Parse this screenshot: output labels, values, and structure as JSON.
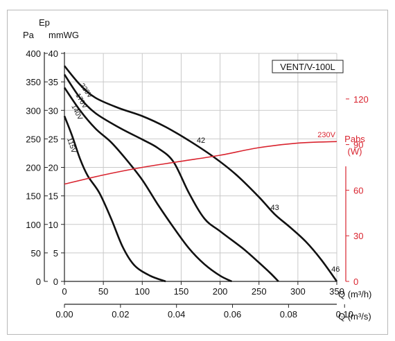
{
  "chart_data": {
    "type": "line",
    "model_label": "VENT/V-100L",
    "y_left": {
      "pa_label": "Pa",
      "ep_label": "Ep",
      "mmwg_label": "mmWG",
      "range": [
        0,
        400
      ],
      "pa_ticks": [
        0,
        50,
        100,
        150,
        200,
        250,
        300,
        350,
        400
      ],
      "mmwg_ticks": [
        0,
        5,
        10,
        15,
        20,
        25,
        30,
        35,
        40
      ]
    },
    "y_right": {
      "label_line1": "Pabs",
      "label_line2": "(W)",
      "range": [
        0,
        150
      ],
      "ticks": [
        0,
        30,
        60,
        90,
        120
      ]
    },
    "x_bottom_m3h": {
      "label": "Q (m³/h)",
      "range": [
        0,
        350
      ],
      "ticks": [
        0,
        50,
        100,
        150,
        200,
        250,
        300,
        350
      ]
    },
    "x_bottom_m3s": {
      "label": "Q (m³/s)",
      "ticks": [
        "0.00",
        "0.02",
        "0.04",
        "0.06",
        "0.08",
        "0.10"
      ]
    },
    "grid": true,
    "series": [
      {
        "name": "230V",
        "points": [
          [
            0,
            378
          ],
          [
            20,
            345
          ],
          [
            40,
            322
          ],
          [
            70,
            304
          ],
          [
            100,
            290
          ],
          [
            130,
            271
          ],
          [
            160,
            247
          ],
          [
            190,
            220
          ],
          [
            220,
            188
          ],
          [
            250,
            148
          ],
          [
            270,
            118
          ],
          [
            290,
            95
          ],
          [
            310,
            70
          ],
          [
            330,
            38
          ],
          [
            350,
            0
          ]
        ]
      },
      {
        "name": "170V",
        "points": [
          [
            0,
            363
          ],
          [
            20,
            322
          ],
          [
            40,
            295
          ],
          [
            70,
            270
          ],
          [
            100,
            249
          ],
          [
            120,
            234
          ],
          [
            140,
            210
          ],
          [
            160,
            155
          ],
          [
            180,
            110
          ],
          [
            200,
            88
          ],
          [
            230,
            57
          ],
          [
            250,
            33
          ],
          [
            265,
            14
          ],
          [
            275,
            0
          ]
        ]
      },
      {
        "name": "140V",
        "points": [
          [
            0,
            340
          ],
          [
            20,
            300
          ],
          [
            40,
            268
          ],
          [
            60,
            244
          ],
          [
            80,
            213
          ],
          [
            100,
            178
          ],
          [
            120,
            135
          ],
          [
            140,
            95
          ],
          [
            160,
            58
          ],
          [
            180,
            30
          ],
          [
            200,
            10
          ],
          [
            215,
            0
          ]
        ]
      },
      {
        "name": "115V",
        "points": [
          [
            0,
            290
          ],
          [
            10,
            255
          ],
          [
            20,
            215
          ],
          [
            30,
            185
          ],
          [
            45,
            155
          ],
          [
            60,
            110
          ],
          [
            75,
            60
          ],
          [
            90,
            28
          ],
          [
            110,
            10
          ],
          [
            130,
            0
          ]
        ]
      }
    ],
    "power_curve": {
      "name": "230V",
      "points_w": [
        [
          0,
          64
        ],
        [
          50,
          70
        ],
        [
          100,
          75
        ],
        [
          150,
          79
        ],
        [
          200,
          83
        ],
        [
          250,
          88
        ],
        [
          300,
          91
        ],
        [
          350,
          92
        ]
      ]
    },
    "annotations": [
      {
        "text": "42",
        "x": 170,
        "y": 248
      },
      {
        "text": "43",
        "x": 265,
        "y": 130
      },
      {
        "text": "46",
        "x": 343,
        "y": 22
      }
    ]
  }
}
